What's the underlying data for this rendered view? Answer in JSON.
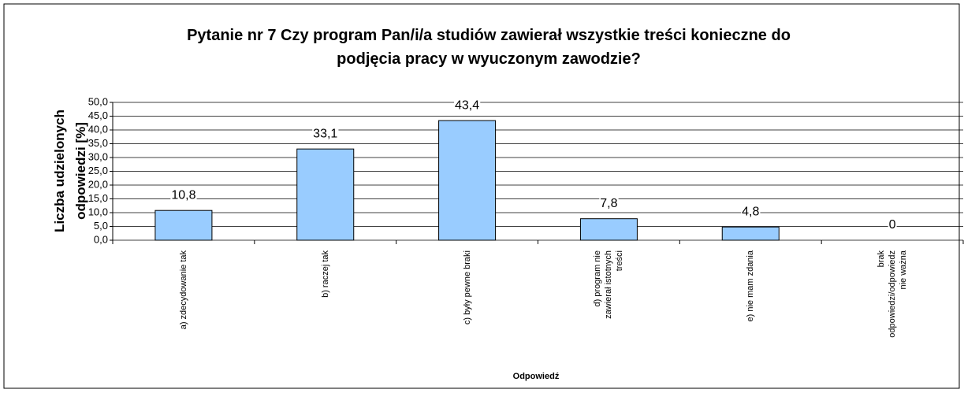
{
  "chart_data": {
    "type": "bar",
    "title": "Pytanie nr 7 Czy program Pan/i/a studiów zawierał wszystkie treści konieczne do podjęcia pracy w wyuczonym zawodzie?",
    "y_label": "Liczba udzielonych odpowiedzi [%]",
    "x_label": "Odpowiedź",
    "categories": [
      "a) zdecydowanie tak",
      "b) raczej tak",
      "c) były pewne braki",
      "d) program nie\nzawierał istotnych\ntreści",
      "e) nie mam zdania",
      "brak\nodpowiedzi/odpowiedz\nnie ważna"
    ],
    "values": [
      10.8,
      33.1,
      43.4,
      7.8,
      4.8,
      0
    ],
    "value_labels": [
      "10,8",
      "33,1",
      "43,4",
      "7,8",
      "4,8",
      "0"
    ],
    "color": "#99ccff",
    "ylim": [
      0,
      50
    ],
    "yticks": [
      {
        "value": 0,
        "label": "0,0"
      },
      {
        "value": 5,
        "label": "5,0"
      },
      {
        "value": 10,
        "label": "10,0"
      },
      {
        "value": 15,
        "label": "15,0"
      },
      {
        "value": 20,
        "label": "20,0"
      },
      {
        "value": 25,
        "label": "25,0"
      },
      {
        "value": 30,
        "label": "30,0"
      },
      {
        "value": 35,
        "label": "35,0"
      },
      {
        "value": 40,
        "label": "40,0"
      },
      {
        "value": 45,
        "label": "45,0"
      },
      {
        "value": 50,
        "label": "50,0"
      }
    ],
    "grid": true
  }
}
